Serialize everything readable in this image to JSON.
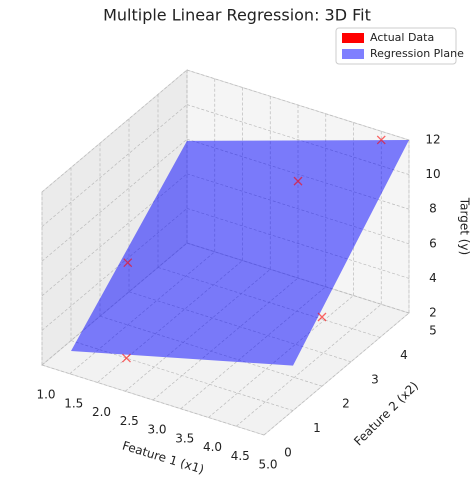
{
  "chart_data": {
    "type": "scatter3d",
    "title": "Multiple Linear Regression: 3D Fit",
    "xlabel": "Feature 1 (x1)",
    "ylabel": "Feature 2 (x2)",
    "zlabel": "Target (y)",
    "xlim": [
      1,
      5
    ],
    "ylim": [
      0,
      5
    ],
    "zlim": [
      2,
      12
    ],
    "xticks": [
      {
        "value": 1,
        "label": "1.0"
      },
      {
        "value": 1.5,
        "label": "1.5"
      },
      {
        "value": 2,
        "label": "2.0"
      },
      {
        "value": 2.5,
        "label": "2.5"
      },
      {
        "value": 3,
        "label": "3.0"
      },
      {
        "value": 3.5,
        "label": "3.5"
      },
      {
        "value": 4,
        "label": "4.0"
      },
      {
        "value": 4.5,
        "label": "4.5"
      },
      {
        "value": 5,
        "label": "5.0"
      }
    ],
    "yticks": [
      0,
      1,
      2,
      3,
      4,
      5
    ],
    "zticks": [
      2,
      4,
      6,
      8,
      10,
      12
    ],
    "grid": true,
    "legend": "upper right",
    "series": [
      {
        "name": "Actual Data",
        "color": "#ff0000",
        "marker": "x",
        "x1": [
          2,
          1.5,
          3,
          5,
          4.5
        ],
        "x2": [
          1,
          2,
          5,
          2,
          5
        ],
        "y": [
          2,
          5.6,
          7.6,
          6,
          11.5
        ]
      },
      {
        "name": "Regression Plane",
        "color": "#0000ff",
        "x1": [
          1,
          5
        ],
        "x2": [
          1,
          5
        ],
        "y": [
          [
            1.4,
            7.9
          ],
          [
            4.6,
            12
          ]
        ]
      }
    ]
  }
}
